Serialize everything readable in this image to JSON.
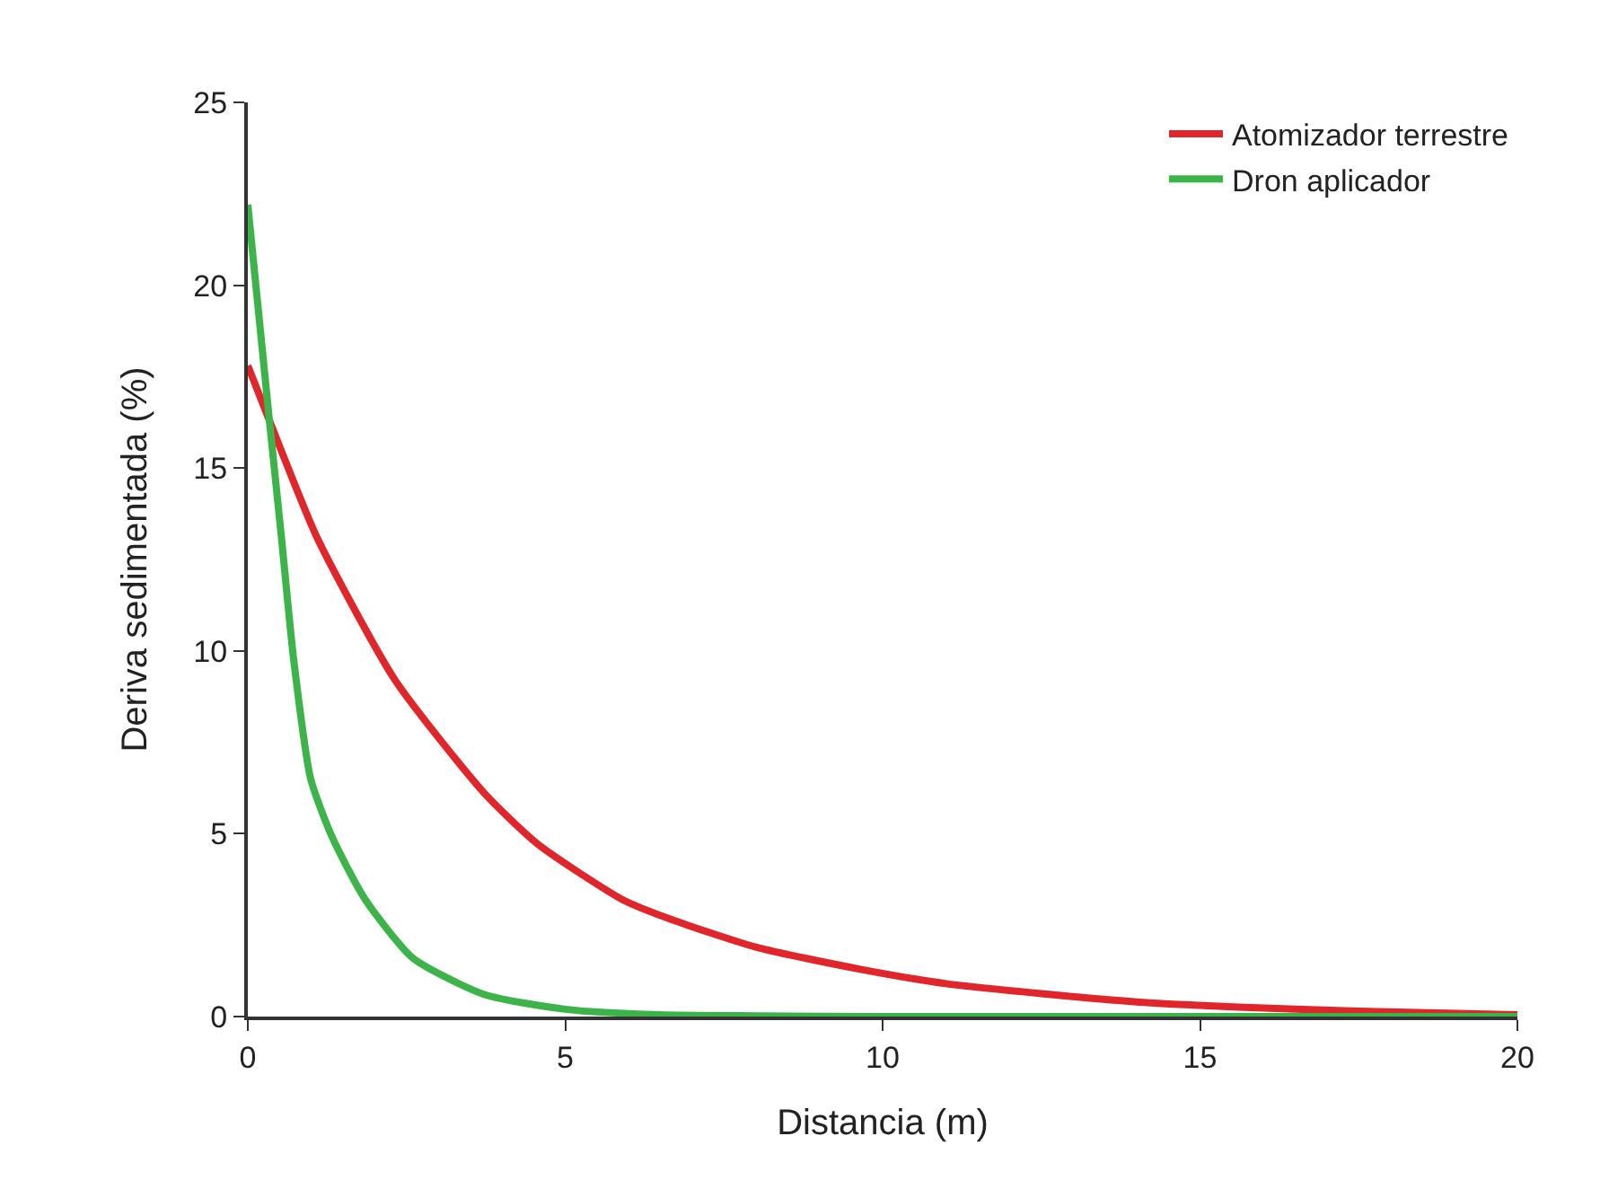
{
  "chart_data": {
    "type": "line",
    "xlabel": "Distancia (m)",
    "ylabel": "Deriva sedimentada (%)",
    "xlim": [
      0,
      20
    ],
    "xticks": [
      0,
      5,
      10,
      15,
      20
    ],
    "ylim": [
      0,
      25
    ],
    "yticks": [
      0,
      5,
      10,
      15,
      20,
      25
    ],
    "grid": false,
    "legend": "top right",
    "marker": "none",
    "line_style": "solid",
    "series": [
      {
        "name": "Atomizador terrestre",
        "color": "#e0262b",
        "x": [
          0,
          0.34,
          1.09,
          2.32,
          3.73,
          4.58,
          5.9,
          6.6,
          8,
          9.63,
          11,
          12.66,
          14,
          15.7,
          17.5,
          20
        ],
        "values": [
          17.8,
          16.3,
          13.1,
          9.2,
          6.1,
          4.7,
          3.2,
          2.7,
          1.9,
          1.3,
          0.9,
          0.6,
          0.4,
          0.25,
          0.15,
          0.05
        ]
      },
      {
        "name": "Dron aplicador",
        "color": "#3cb44a",
        "x": [
          0,
          0.34,
          0.53,
          0.72,
          0.99,
          1.33,
          1.85,
          2.6,
          3.73,
          5,
          6.5,
          8,
          10,
          15,
          20
        ],
        "values": [
          22.2,
          16.3,
          13.1,
          9.8,
          6.5,
          4.9,
          3.2,
          1.6,
          0.6,
          0.2,
          0.05,
          0.02,
          0,
          0,
          0
        ]
      }
    ]
  }
}
